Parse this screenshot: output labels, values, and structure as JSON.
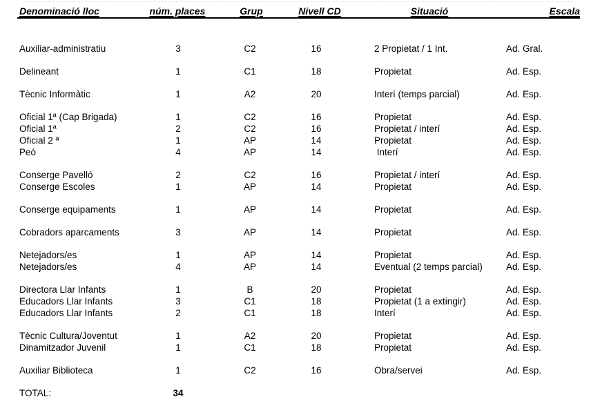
{
  "document": {
    "headers": {
      "lloc": "Denominació lloc",
      "places": "núm. places",
      "grup": "Grup",
      "nivell": "Nivell CD",
      "situacio": "Situació",
      "escala": "Escala"
    },
    "groups": [
      [
        {
          "lloc": "Auxiliar-administratiu",
          "places": "3",
          "grup": "C2",
          "nivell": "16",
          "situacio": "2 Propietat / 1 Int.",
          "escala": "Ad. Gral."
        }
      ],
      [
        {
          "lloc": "Delineant",
          "places": "1",
          "grup": "C1",
          "nivell": "18",
          "situacio": "Propietat",
          "escala": "Ad. Esp."
        }
      ],
      [
        {
          "lloc": "Tècnic Informàtic",
          "places": "1",
          "grup": "A2",
          "nivell": "20",
          "situacio": "Interí (temps parcial)",
          "escala": "Ad. Esp."
        }
      ],
      [
        {
          "lloc": "Oficial 1ª (Cap Brigada)",
          "places": "1",
          "grup": "C2",
          "nivell": "16",
          "situacio": "Propietat",
          "escala": "Ad. Esp."
        },
        {
          "lloc": "Oficial 1ª",
          "places": "2",
          "grup": "C2",
          "nivell": "16",
          "situacio": "Propietat / interí",
          "escala": "Ad. Esp."
        },
        {
          "lloc": "Oficial 2 ª",
          "places": "1",
          "grup": "AP",
          "nivell": "14",
          "situacio": "Propietat",
          "escala": "Ad. Esp."
        },
        {
          "lloc": "Peó",
          "places": "4",
          "grup": "AP",
          "nivell": "14",
          "situacio": " Interí",
          "escala": "Ad. Esp."
        }
      ],
      [
        {
          "lloc": "Conserge Pavelló",
          "places": "2",
          "grup": "C2",
          "nivell": "16",
          "situacio": "Propietat / interí",
          "escala": "Ad. Esp."
        },
        {
          "lloc": "Conserge Escoles",
          "places": "1",
          "grup": "AP",
          "nivell": "14",
          "situacio": "Propietat",
          "escala": "Ad. Esp."
        }
      ],
      [
        {
          "lloc": "Conserge equipaments",
          "places": "1",
          "grup": "AP",
          "nivell": "14",
          "situacio": "Propietat",
          "escala": "Ad. Esp."
        }
      ],
      [
        {
          "lloc": "Cobradors aparcaments",
          "places": "3",
          "grup": "AP",
          "nivell": "14",
          "situacio": "Propietat",
          "escala": "Ad. Esp."
        }
      ],
      [
        {
          "lloc": "Netejadors/es",
          "places": "1",
          "grup": "AP",
          "nivell": "14",
          "situacio": "Propietat",
          "escala": "Ad. Esp."
        },
        {
          "lloc": "Netejadors/es",
          "places": "4",
          "grup": "AP",
          "nivell": "14",
          "situacio": "Eventual (2 temps parcial)",
          "escala": "Ad. Esp."
        }
      ],
      [
        {
          "lloc": "Directora Llar Infants",
          "places": "1",
          "grup": "B",
          "nivell": "20",
          "situacio": "Propietat",
          "escala": "Ad. Esp."
        },
        {
          "lloc": "Educadors Llar Infants",
          "places": "3",
          "grup": "C1",
          "nivell": "18",
          "situacio": "Propietat (1 a extingir)",
          "escala": "Ad. Esp."
        },
        {
          "lloc": "Educadors Llar Infants",
          "places": "2",
          "grup": "C1",
          "nivell": "18",
          "situacio": "Interí",
          "escala": "Ad. Esp."
        }
      ],
      [
        {
          "lloc": "Tècnic Cultura/Joventut",
          "places": "1",
          "grup": "A2",
          "nivell": "20",
          "situacio": "Propietat",
          "escala": "Ad. Esp."
        },
        {
          "lloc": "Dinamitzador Juvenil",
          "places": "1",
          "grup": "C1",
          "nivell": "18",
          "situacio": "Propietat",
          "escala": "Ad. Esp."
        }
      ],
      [
        {
          "lloc": "Auxiliar Biblioteca",
          "places": "1",
          "grup": "C2",
          "nivell": "16",
          "situacio": "Obra/servei",
          "escala": "Ad. Esp."
        }
      ]
    ],
    "total": {
      "label": "TOTAL:",
      "value": "34"
    },
    "colors": {
      "text": "#000000",
      "background": "#ffffff",
      "rule": "#000000"
    }
  }
}
